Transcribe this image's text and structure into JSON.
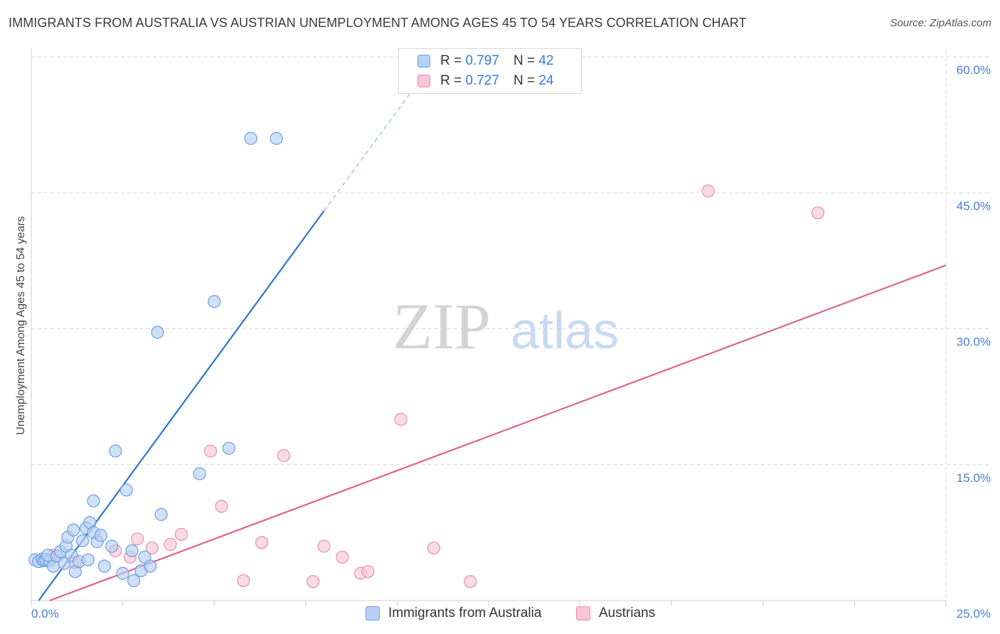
{
  "header": {
    "title": "IMMIGRANTS FROM AUSTRALIA VS AUSTRIAN UNEMPLOYMENT AMONG AGES 45 TO 54 YEARS CORRELATION CHART",
    "source": "Source: ZipAtlas.com"
  },
  "legend": {
    "r_label": "R =",
    "n_label": "N =",
    "rows": [
      {
        "r": "0.797",
        "n": "42"
      },
      {
        "r": "0.727",
        "n": "24"
      }
    ]
  },
  "watermark": {
    "zip": "ZIP",
    "atlas": "atlas"
  },
  "colors": {
    "blue_fill": "#b7d0f3",
    "blue_stroke": "#6a9ee0",
    "blue_line": "#2f74d0",
    "pink_fill": "#f8c6d6",
    "pink_stroke": "#e890ac",
    "pink_line": "#e0628c",
    "grid": "#d9d9d9",
    "tick_label": "#4a7fd4"
  },
  "chart_data": {
    "type": "scatter",
    "title": "IMMIGRANTS FROM AUSTRALIA VS AUSTRIAN UNEMPLOYMENT AMONG AGES 45 TO 54 YEARS CORRELATION CHART",
    "xlabel": "",
    "ylabel": "Unemployment Among Ages 45 to 54 years",
    "xlim": [
      0,
      25
    ],
    "ylim": [
      0,
      60
    ],
    "x_tick_labels": [
      "0.0%",
      "25.0%"
    ],
    "y_ticks": [
      15,
      30,
      45,
      60
    ],
    "y_tick_labels": [
      "15.0%",
      "30.0%",
      "45.0%",
      "60.0%"
    ],
    "grid": true,
    "series": [
      {
        "name": "Immigrants from Australia",
        "r": 0.797,
        "n": 42,
        "trendline": {
          "x0": 0.2,
          "y0": 0.0,
          "x1": 8.0,
          "y1": 43.0,
          "dash_to_x": 10.5
        },
        "points": [
          [
            0.1,
            4.5
          ],
          [
            0.2,
            4.3
          ],
          [
            0.3,
            4.6
          ],
          [
            0.35,
            4.4
          ],
          [
            0.4,
            4.5
          ],
          [
            0.5,
            4.4
          ],
          [
            0.45,
            5.0
          ],
          [
            0.6,
            3.8
          ],
          [
            0.7,
            4.9
          ],
          [
            0.8,
            5.4
          ],
          [
            0.9,
            4.1
          ],
          [
            0.95,
            6.0
          ],
          [
            1.0,
            7.0
          ],
          [
            1.1,
            5.0
          ],
          [
            1.15,
            7.8
          ],
          [
            1.2,
            3.2
          ],
          [
            1.3,
            4.3
          ],
          [
            1.4,
            6.6
          ],
          [
            1.5,
            8.0
          ],
          [
            1.55,
            4.5
          ],
          [
            1.6,
            8.6
          ],
          [
            1.7,
            7.5
          ],
          [
            1.8,
            6.5
          ],
          [
            1.9,
            7.2
          ],
          [
            1.7,
            11.0
          ],
          [
            2.0,
            3.8
          ],
          [
            2.2,
            6.0
          ],
          [
            2.5,
            3.0
          ],
          [
            2.3,
            16.5
          ],
          [
            2.6,
            12.2
          ],
          [
            2.8,
            2.2
          ],
          [
            2.75,
            5.5
          ],
          [
            3.0,
            3.3
          ],
          [
            3.1,
            4.8
          ],
          [
            3.25,
            3.8
          ],
          [
            3.55,
            9.5
          ],
          [
            4.6,
            14.0
          ],
          [
            5.4,
            16.8
          ],
          [
            3.45,
            29.6
          ],
          [
            5.0,
            33.0
          ],
          [
            6.0,
            51.0
          ],
          [
            6.7,
            51.0
          ]
        ]
      },
      {
        "name": "Austrians",
        "r": 0.727,
        "n": 24,
        "trendline": {
          "x0": 0.5,
          "y0": 0.0,
          "x1": 25.0,
          "y1": 37.0
        },
        "points": [
          [
            0.3,
            4.5
          ],
          [
            0.6,
            5.0
          ],
          [
            1.2,
            4.2
          ],
          [
            2.3,
            5.5
          ],
          [
            2.7,
            4.8
          ],
          [
            2.9,
            6.8
          ],
          [
            3.3,
            5.8
          ],
          [
            3.8,
            6.2
          ],
          [
            4.1,
            7.3
          ],
          [
            4.9,
            16.5
          ],
          [
            5.2,
            10.4
          ],
          [
            5.8,
            2.2
          ],
          [
            6.3,
            6.4
          ],
          [
            6.9,
            16.0
          ],
          [
            7.7,
            2.1
          ],
          [
            8.0,
            6.0
          ],
          [
            8.5,
            4.8
          ],
          [
            9.0,
            3.0
          ],
          [
            9.2,
            3.2
          ],
          [
            10.1,
            20.0
          ],
          [
            11.0,
            5.8
          ],
          [
            12.0,
            2.1
          ],
          [
            18.5,
            45.2
          ],
          [
            21.5,
            42.8
          ]
        ]
      }
    ]
  }
}
